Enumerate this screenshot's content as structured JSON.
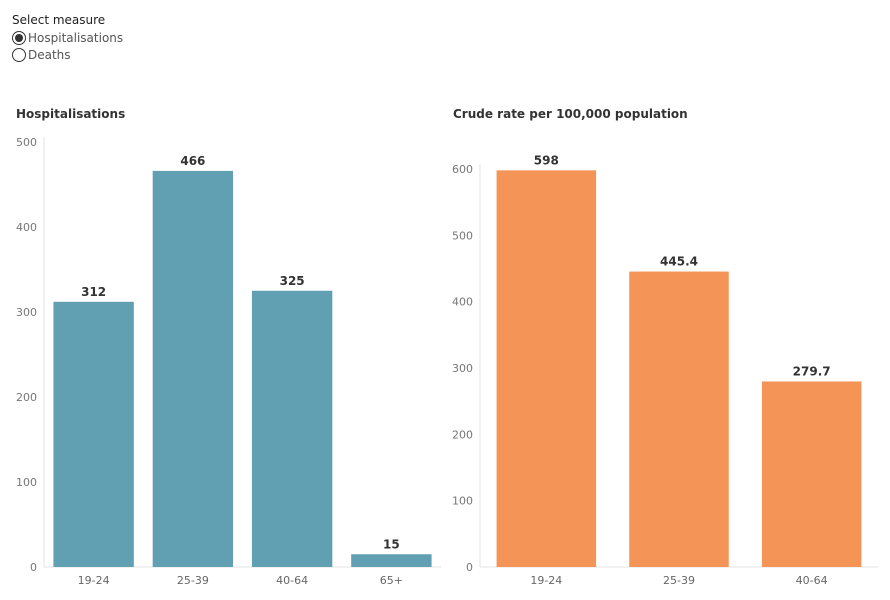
{
  "measure_selector": {
    "title": "Select measure",
    "options": [
      {
        "label": "Hospitalisations",
        "selected": true
      },
      {
        "label": "Deaths",
        "selected": false
      }
    ]
  },
  "chart_data": [
    {
      "type": "bar",
      "title": "Hospitalisations",
      "xlabel": "",
      "ylabel": "",
      "categories": [
        "19-24",
        "25-39",
        "40-64",
        "65+"
      ],
      "values": [
        312,
        466,
        325,
        15
      ],
      "value_labels": [
        "312",
        "466",
        "325",
        "15"
      ],
      "ylim": [
        0,
        500
      ],
      "yticks": [
        0,
        100,
        200,
        300,
        400,
        500
      ],
      "color": "#619fb2",
      "grid": false
    },
    {
      "type": "bar",
      "title": "Crude rate per 100,000 population",
      "xlabel": "",
      "ylabel": "",
      "categories": [
        "19-24",
        "25-39",
        "40-64"
      ],
      "values": [
        598,
        445.4,
        279.7
      ],
      "value_labels": [
        "598",
        "445.4",
        "279.7"
      ],
      "ylim": [
        0,
        600
      ],
      "yticks": [
        0,
        100,
        200,
        300,
        400,
        500,
        600
      ],
      "color": "#f59457",
      "grid": false
    }
  ]
}
